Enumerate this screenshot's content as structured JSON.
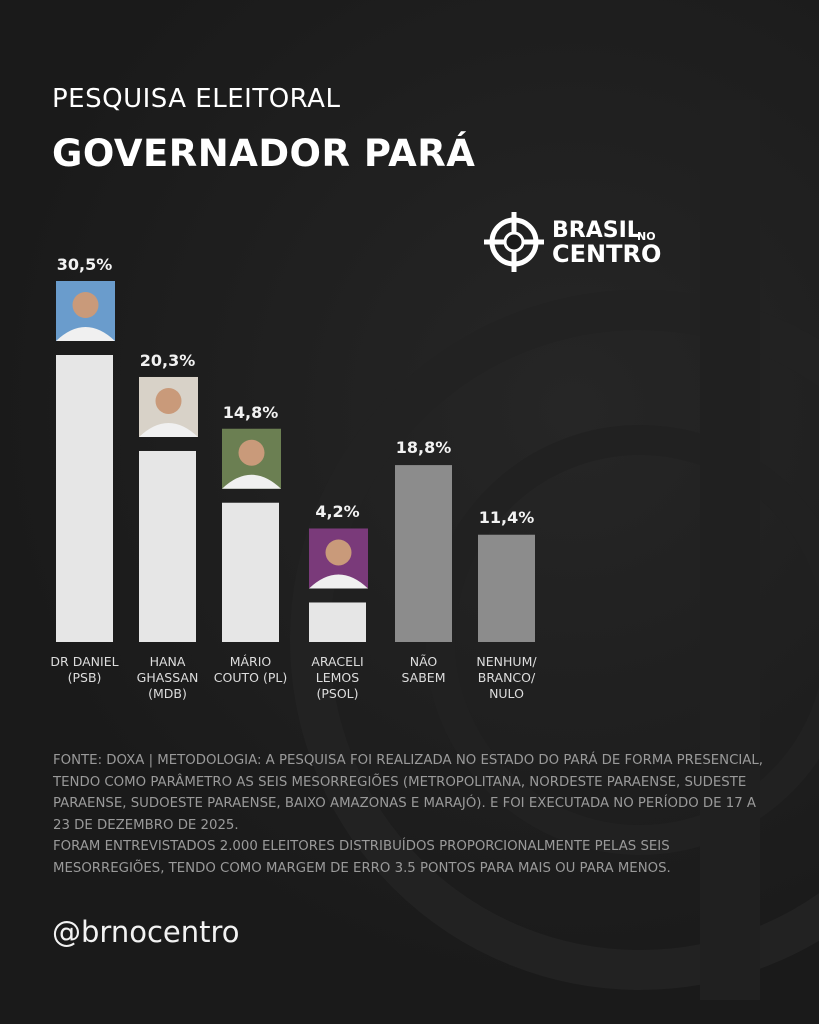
{
  "chart_data": {
    "type": "bar",
    "subtitle": "PESQUISA ELEITORAL",
    "title": "GOVERNADOR PARÁ",
    "categories": [
      "DR DANIEL\n(PSB)",
      "HANA\nGHASSAN\n(MDB)",
      "MÁRIO\nCOUTO (PL)",
      "ARACELI\nLEMOS\n(PSOL)",
      "NÃO\nSABEM",
      "NENHUM/\nBRANCO/\nNULO"
    ],
    "values": [
      30.5,
      20.3,
      14.8,
      4.2,
      18.8,
      11.4
    ],
    "value_labels": [
      "30,5%",
      "20,3%",
      "14,8%",
      "4,2%",
      "18,8%",
      "11,4%"
    ],
    "colors": [
      "#e6e6e6",
      "#e6e6e6",
      "#e6e6e6",
      "#e6e6e6",
      "#8c8c8c",
      "#8c8c8c"
    ]
  },
  "logo": [
    "BRASIL",
    "NO",
    "CENTRO"
  ],
  "note": [
    "FONTE: DOXA | METODOLOGIA: A PESQUISA FOI REALIZADA NO ESTADO DO PARÁ DE FORMA PRESENCIAL, TENDO COMO PARÂMETRO AS SEIS MESORREGIÕES (METROPOLITANA, NORDESTE PARAENSE, SUDESTE PARAENSE, SUDOESTE PARAENSE, BAIXO AMAZONAS E MARAJÓ). E FOI EXECUTADA NO PERÍODO DE 17 A 23 DE DEZEMBRO DE 2025.",
    "FORAM ENTREVISTADOS 2.000 ELEITORES DISTRIBUÍDOS PROPORCIONALMENTE PELAS SEIS MESORREGIÕES, TENDO COMO MARGEM DE ERRO 3.5 PONTOS PARA MAIS OU PARA MENOS."
  ],
  "handle": "@brnocentro"
}
